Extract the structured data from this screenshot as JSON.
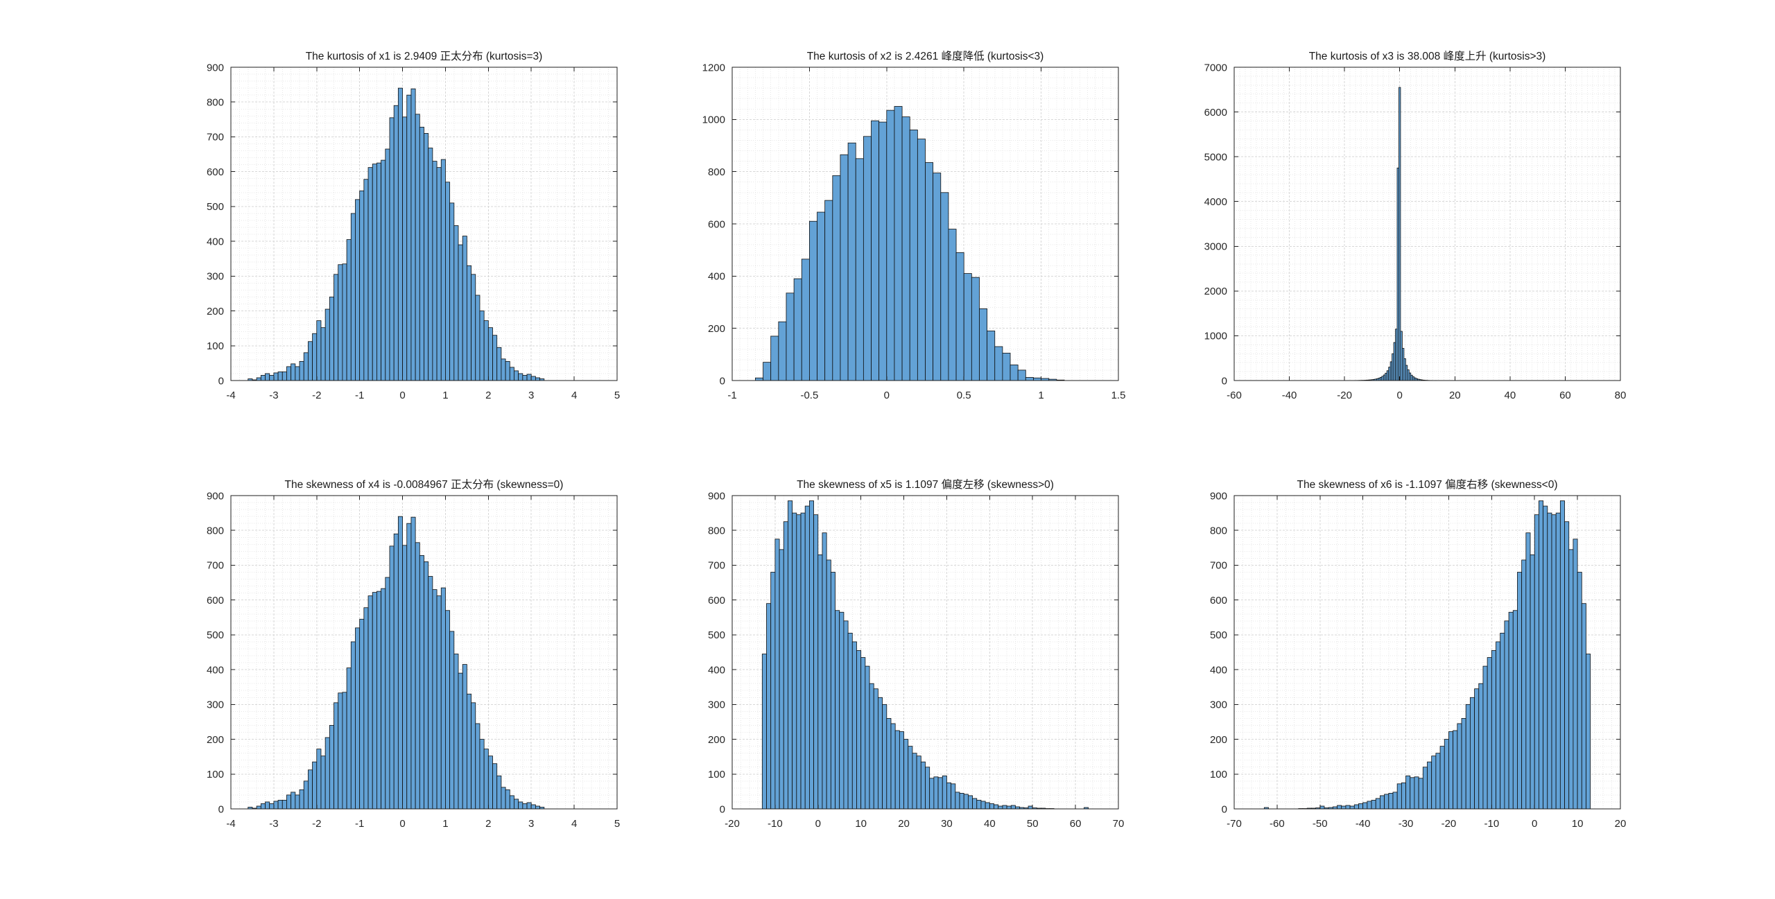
{
  "figure": {
    "background": "#ffffff",
    "colors": {
      "bar_fill": "#63a2d6",
      "bar_edge": "#0d0d0d",
      "grid_major": "#d7d7d7",
      "grid_minor": "#e7e7e7",
      "axis": "#1f1f1f",
      "tick_text": "#262626",
      "title_text": "#1a1a1a"
    }
  },
  "chart_data": [
    {
      "name": "x1",
      "type": "bar",
      "title": "The kurtosis of x1 is 2.9409 正太分布 (kurtosis=3)",
      "xlabel": "",
      "ylabel": "",
      "xlim": [
        -4,
        5
      ],
      "ylim": [
        0,
        900
      ],
      "xticks": [
        "-4",
        "-3",
        "-2",
        "-1",
        "0",
        "1",
        "2",
        "3",
        "4",
        "5"
      ],
      "yticks": [
        "0",
        "100",
        "200",
        "300",
        "400",
        "500",
        "600",
        "700",
        "800",
        "900"
      ],
      "x_minor_div": 5,
      "y_minor_div": 5,
      "grid": "minor-dotted",
      "bins": {
        "start": -3.6,
        "width": 0.1,
        "counts": [
          5,
          2,
          8,
          15,
          20,
          15,
          22,
          25,
          25,
          40,
          48,
          40,
          55,
          80,
          112,
          135,
          172,
          152,
          205,
          240,
          305,
          333,
          335,
          405,
          480,
          520,
          545,
          578,
          612,
          622,
          625,
          633,
          665,
          755,
          790,
          840,
          757,
          820,
          838,
          765,
          728,
          710,
          668,
          630,
          612,
          635,
          570,
          510,
          445,
          390,
          415,
          330,
          305,
          245,
          200,
          172,
          152,
          130,
          95,
          62,
          55,
          38,
          28,
          20,
          15,
          18,
          12,
          8,
          5
        ]
      }
    },
    {
      "name": "x2",
      "type": "bar",
      "title": "The kurtosis of x2 is 2.4261 峰度降低 (kurtosis<3)",
      "xlabel": "",
      "ylabel": "",
      "xlim": [
        -1,
        1.5
      ],
      "ylim": [
        0,
        1200
      ],
      "xticks": [
        "-1",
        "-0.5",
        "0",
        "0.5",
        "1",
        "1.5"
      ],
      "yticks": [
        "0",
        "200",
        "400",
        "600",
        "800",
        "1000",
        "1200"
      ],
      "x_minor_div": 10,
      "y_minor_div": 5,
      "grid": "minor-dotted",
      "bins": {
        "start": -0.85,
        "width": 0.05,
        "counts": [
          10,
          70,
          170,
          225,
          335,
          390,
          465,
          610,
          645,
          690,
          785,
          865,
          910,
          850,
          935,
          995,
          990,
          1035,
          1050,
          1010,
          960,
          925,
          835,
          795,
          720,
          580,
          490,
          410,
          395,
          275,
          190,
          130,
          105,
          60,
          40,
          12,
          10,
          8,
          5,
          2
        ]
      }
    },
    {
      "name": "x3",
      "type": "bar",
      "title": "The kurtosis of x3 is 38.008 峰度上升 (kurtosis>3)",
      "xlabel": "",
      "ylabel": "",
      "xlim": [
        -60,
        80
      ],
      "ylim": [
        0,
        7000
      ],
      "xticks": [
        "-60",
        "-40",
        "-20",
        "0",
        "20",
        "40",
        "60",
        "80"
      ],
      "yticks": [
        "0",
        "1000",
        "2000",
        "3000",
        "4000",
        "5000",
        "6000",
        "7000"
      ],
      "x_minor_div": 10,
      "y_minor_div": 5,
      "grid": "minor-dotted",
      "bins": {
        "start": -16.43,
        "width": 0.62,
        "counts": [
          2,
          2,
          3,
          4,
          5,
          6,
          8,
          10,
          13,
          16,
          20,
          26,
          33,
          42,
          55,
          72,
          95,
          125,
          165,
          220,
          300,
          420,
          600,
          850,
          1150,
          4750,
          6550,
          1100,
          720,
          490,
          340,
          240,
          170,
          120,
          85,
          60,
          42,
          30,
          21,
          15,
          10,
          7,
          5,
          3,
          2,
          2,
          1,
          2
        ]
      }
    },
    {
      "name": "x4",
      "type": "bar",
      "title": "The skewness of x4 is -0.0084967 正太分布 (skewness=0)",
      "xlabel": "",
      "ylabel": "",
      "xlim": [
        -4,
        5
      ],
      "ylim": [
        0,
        900
      ],
      "xticks": [
        "-4",
        "-3",
        "-2",
        "-1",
        "0",
        "1",
        "2",
        "3",
        "4",
        "5"
      ],
      "yticks": [
        "0",
        "100",
        "200",
        "300",
        "400",
        "500",
        "600",
        "700",
        "800",
        "900"
      ],
      "x_minor_div": 5,
      "y_minor_div": 5,
      "grid": "minor-dotted",
      "bins": {
        "start": -3.6,
        "width": 0.1,
        "counts": [
          5,
          2,
          8,
          15,
          20,
          15,
          22,
          25,
          25,
          40,
          48,
          40,
          55,
          80,
          112,
          135,
          172,
          152,
          205,
          240,
          305,
          333,
          335,
          405,
          480,
          520,
          545,
          578,
          612,
          622,
          625,
          633,
          665,
          755,
          790,
          840,
          757,
          820,
          838,
          765,
          728,
          710,
          668,
          630,
          612,
          635,
          570,
          510,
          445,
          390,
          415,
          330,
          305,
          245,
          200,
          172,
          152,
          130,
          95,
          62,
          55,
          38,
          28,
          20,
          15,
          18,
          12,
          8,
          5
        ]
      }
    },
    {
      "name": "x5",
      "type": "bar",
      "title": "The skewness of x5 is 1.1097 偏度左移 (skewness>0)",
      "xlabel": "",
      "ylabel": "",
      "xlim": [
        -20,
        70
      ],
      "ylim": [
        0,
        900
      ],
      "xticks": [
        "-20",
        "-10",
        "0",
        "10",
        "20",
        "30",
        "40",
        "50",
        "60",
        "70"
      ],
      "yticks": [
        "0",
        "100",
        "200",
        "300",
        "400",
        "500",
        "600",
        "700",
        "800",
        "900"
      ],
      "x_minor_div": 5,
      "y_minor_div": 5,
      "grid": "minor-dotted",
      "bins": {
        "start": -13,
        "width": 1,
        "counts": [
          445,
          590,
          680,
          775,
          745,
          825,
          885,
          850,
          845,
          850,
          870,
          885,
          845,
          730,
          793,
          715,
          680,
          570,
          565,
          540,
          505,
          480,
          455,
          435,
          410,
          360,
          345,
          320,
          300,
          260,
          245,
          225,
          222,
          200,
          180,
          160,
          152,
          135,
          120,
          88,
          92,
          90,
          95,
          75,
          72,
          48,
          45,
          42,
          38,
          30,
          25,
          22,
          18,
          15,
          12,
          8,
          10,
          8,
          10,
          6,
          4,
          3,
          8,
          3,
          2,
          2,
          1,
          1,
          0,
          0,
          0,
          0,
          0,
          0,
          0,
          4
        ]
      }
    },
    {
      "name": "x6",
      "type": "bar",
      "title": "The skewness of x6 is -1.1097 偏度右移 (skewness<0)",
      "xlabel": "",
      "ylabel": "",
      "xlim": [
        -70,
        20
      ],
      "ylim": [
        0,
        900
      ],
      "xticks": [
        "-70",
        "-60",
        "-50",
        "-40",
        "-30",
        "-20",
        "-10",
        "0",
        "10",
        "20"
      ],
      "yticks": [
        "0",
        "100",
        "200",
        "300",
        "400",
        "500",
        "600",
        "700",
        "800",
        "900"
      ],
      "x_minor_div": 5,
      "y_minor_div": 5,
      "grid": "minor-dotted",
      "bins": {
        "start": -63,
        "width": 1,
        "counts": [
          4,
          0,
          0,
          0,
          0,
          0,
          0,
          0,
          1,
          1,
          2,
          2,
          3,
          8,
          3,
          4,
          6,
          10,
          8,
          10,
          8,
          12,
          15,
          18,
          22,
          25,
          30,
          38,
          42,
          45,
          48,
          72,
          75,
          95,
          90,
          92,
          88,
          120,
          135,
          152,
          160,
          180,
          200,
          222,
          225,
          245,
          260,
          300,
          320,
          345,
          360,
          410,
          435,
          455,
          480,
          505,
          540,
          565,
          570,
          680,
          715,
          793,
          730,
          845,
          885,
          870,
          850,
          845,
          850,
          885,
          825,
          745,
          775,
          680,
          590,
          445
        ]
      }
    }
  ]
}
